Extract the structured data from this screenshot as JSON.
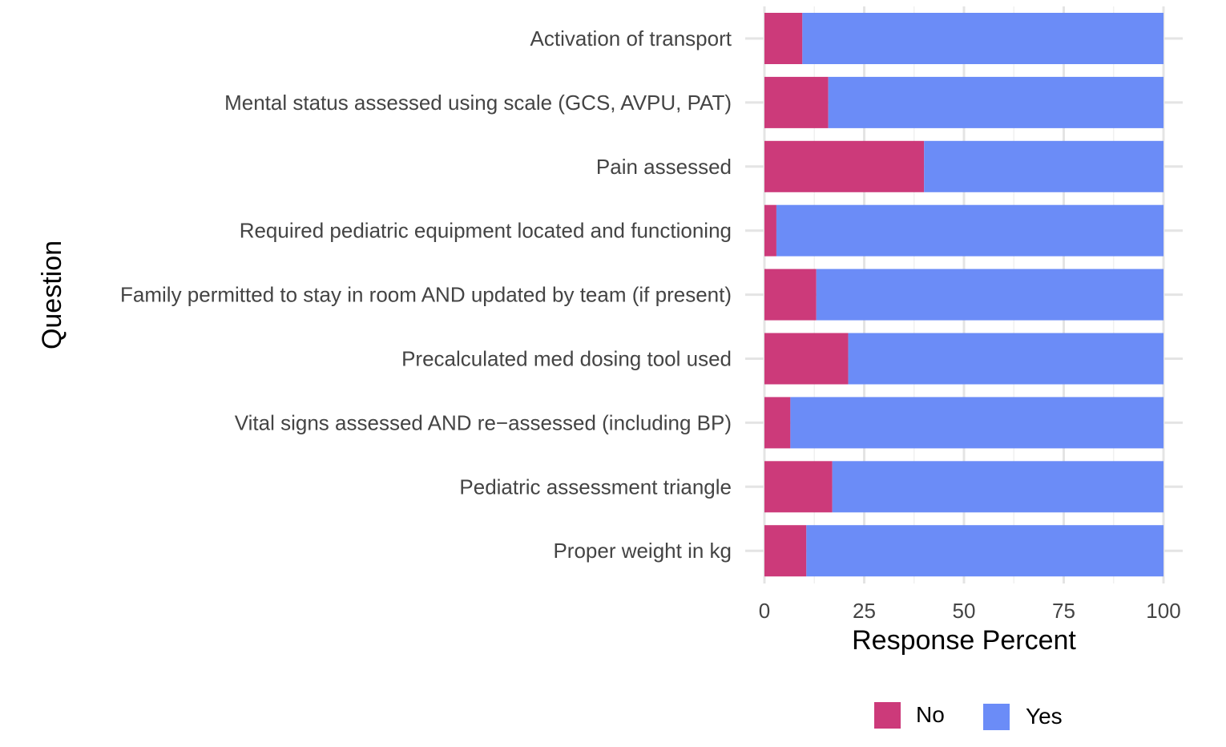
{
  "chart_data": {
    "type": "bar",
    "orientation": "horizontal",
    "stacked": true,
    "xlabel": "Response Percent",
    "ylabel": "Question",
    "xlim": [
      0,
      100
    ],
    "xticks": [
      "0",
      "25",
      "50",
      "75",
      "100"
    ],
    "xtick_values": [
      0,
      25,
      50,
      75,
      100
    ],
    "categories": [
      "Activation of transport",
      "Mental status assessed using scale (GCS, AVPU, PAT)",
      "Pain assessed",
      "Required pediatric equipment located and functioning",
      "Family permitted to stay in room AND updated by team (if present)",
      "Precalculated med dosing tool used",
      "Vital signs assessed AND re−assessed (including BP)",
      "Pediatric assessment triangle",
      "Proper weight in kg"
    ],
    "series": [
      {
        "name": "No",
        "color": "#cc3a7a",
        "values": [
          9.5,
          16,
          40,
          3,
          13,
          21,
          6.5,
          17,
          10.5
        ]
      },
      {
        "name": "Yes",
        "color": "#6b8cf7",
        "values": [
          90.5,
          84,
          60,
          97,
          87,
          79,
          93.5,
          83,
          89.5
        ]
      }
    ],
    "grid": true,
    "legend_position": "bottom"
  }
}
